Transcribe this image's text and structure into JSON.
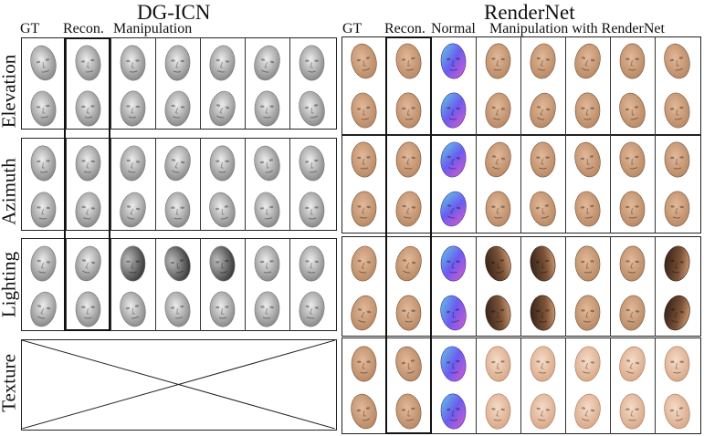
{
  "left": {
    "title": "DG-ICN",
    "headers": {
      "gt": "GT",
      "recon": "Recon.",
      "manip": "Manipulation"
    },
    "groups": [
      "Elevation",
      "Azimuth",
      "Lighting",
      "Texture"
    ]
  },
  "right": {
    "title": "RenderNet",
    "headers": {
      "gt": "GT",
      "recon": "Recon.",
      "normal": "Normal",
      "manip": "Manipulation with RenderNet"
    }
  },
  "colors": {
    "gray_face": "#c9c9c9",
    "gray_face_dark": "#8a8a8a",
    "skin_face": "#b98a66",
    "skin_face_light": "#e3b99a",
    "normal_face_a": "#6b5cf0",
    "normal_face_b": "#e05ac8",
    "normal_face_c": "#5fd0e0",
    "shadow_face": "#3a2418"
  }
}
